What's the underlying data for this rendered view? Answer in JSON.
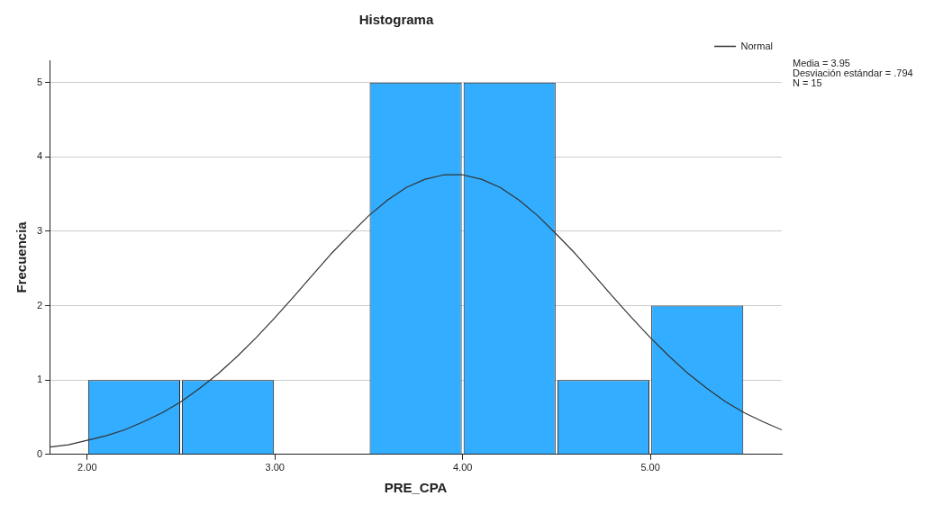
{
  "chart_data": {
    "type": "histogram",
    "title": "Histograma",
    "xlabel": "PRE_CPA",
    "ylabel": "Frecuencia",
    "bins": [
      2.0,
      2.5,
      3.0,
      3.5,
      4.0,
      4.5,
      5.0,
      5.5
    ],
    "values": [
      1,
      1,
      0,
      5,
      5,
      1,
      2
    ],
    "color": "#33adff",
    "series": [
      {
        "type": "line",
        "name": "Normal",
        "color": "#333333",
        "x": [
          1.8,
          1.9,
          2.0,
          2.1,
          2.2,
          2.3,
          2.4,
          2.5,
          2.6,
          2.7,
          2.8,
          2.9,
          3.0,
          3.1,
          3.2,
          3.3,
          3.4,
          3.5,
          3.6,
          3.7,
          3.8,
          3.9,
          4.0,
          4.1,
          4.2,
          4.3,
          4.4,
          4.5,
          4.6,
          4.7,
          4.8,
          4.9,
          5.0,
          5.1,
          5.2,
          5.3,
          5.4,
          5.5,
          5.6,
          5.7
        ],
        "values": [
          0.1,
          0.13,
          0.19,
          0.25,
          0.33,
          0.44,
          0.56,
          0.71,
          0.89,
          1.09,
          1.32,
          1.57,
          1.84,
          2.12,
          2.41,
          2.7,
          2.96,
          3.21,
          3.42,
          3.59,
          3.7,
          3.76,
          3.76,
          3.7,
          3.59,
          3.42,
          3.21,
          2.96,
          2.7,
          2.41,
          2.12,
          1.84,
          1.57,
          1.32,
          1.09,
          0.89,
          0.71,
          0.56,
          0.44,
          0.33
        ]
      }
    ],
    "xlim": [
      1.8,
      5.7
    ],
    "xticks": [
      {
        "value": 2,
        "label": "2.00"
      },
      {
        "value": 3,
        "label": "3.00"
      },
      {
        "value": 4,
        "label": "4.00"
      },
      {
        "value": 5,
        "label": "5.00"
      }
    ],
    "ylim": [
      0,
      5.3
    ],
    "yticks": [
      0,
      1,
      2,
      3,
      4,
      5
    ],
    "grid": "y",
    "legend": "top right",
    "marker": "none",
    "line_style": "solid",
    "annotations": [
      "Media = 3.95",
      "Desviación estándar = .794",
      "N = 15"
    ]
  }
}
